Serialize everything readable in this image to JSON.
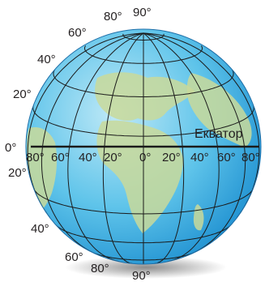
{
  "diagram": {
    "equator_label": "Екватор",
    "colors": {
      "ocean_light": "#bfe9f7",
      "ocean_mid": "#5fc4ea",
      "ocean_dark": "#1d8fd0",
      "land": "#c9d99a",
      "grid": "#1b1b1b",
      "equator": "#1b1b1b"
    },
    "latitude_labels": {
      "north": [
        "90°",
        "80°",
        "60°",
        "40°",
        "20°"
      ],
      "zero": "0°",
      "south": [
        "20°",
        "40°",
        "60°",
        "80°",
        "90°"
      ]
    },
    "longitude_labels": [
      "80°",
      "60°",
      "40°",
      "20°",
      "0°",
      "20°",
      "40°",
      "60°",
      "80°"
    ]
  }
}
